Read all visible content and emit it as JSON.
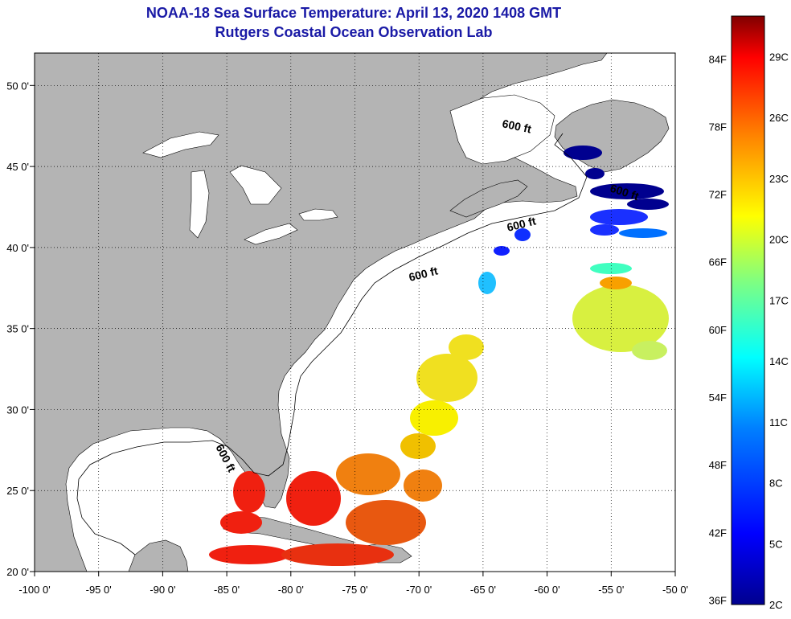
{
  "title": "NOAA-18 Sea Surface Temperature:  April 13, 2020 1408 GMT",
  "subtitle": "Rutgers Coastal Ocean Observation Lab",
  "axes": {
    "lon_labels": [
      "-100 0'",
      "-95 0'",
      "-90 0'",
      "-85 0'",
      "-80 0'",
      "-75 0'",
      "-70 0'",
      "-65 0'",
      "-60 0'",
      "-55 0'",
      "-50 0'"
    ],
    "lon_values": [
      -100,
      -95,
      -90,
      -85,
      -80,
      -75,
      -70,
      -65,
      -60,
      -55,
      -50
    ],
    "lat_labels": [
      "20 0'",
      "25 0'",
      "30 0'",
      "35 0'",
      "40 0'",
      "45 0'",
      "50 0'"
    ],
    "lat_values": [
      20,
      25,
      30,
      35,
      40,
      45,
      50
    ],
    "lon_range": [
      -100,
      -50
    ],
    "lat_range": [
      20,
      52
    ]
  },
  "contour_labels": [
    "600 ft",
    "600 ft",
    "600 ft",
    "600 ft",
    "600 ft"
  ],
  "colorbar": {
    "fahrenheit_labels": [
      "84F",
      "78F",
      "72F",
      "66F",
      "60F",
      "54F",
      "48F",
      "42F",
      "36F"
    ],
    "fahrenheit_values": [
      84,
      78,
      72,
      66,
      60,
      54,
      48,
      42,
      36
    ],
    "celsius_labels": [
      "29C",
      "26C",
      "23C",
      "20C",
      "17C",
      "14C",
      "11C",
      "8C",
      "5C",
      "2C"
    ],
    "celsius_values": [
      29,
      26,
      23,
      20,
      17,
      14,
      11,
      8,
      5,
      2
    ],
    "range_c": [
      2,
      31
    ],
    "colors": [
      "#00008f",
      "#0000ff",
      "#0080ff",
      "#00ffff",
      "#80ff80",
      "#ffff00",
      "#ff8000",
      "#ff0000",
      "#800000"
    ]
  },
  "colors": {
    "land": "#b4b4b4",
    "ocean": "#ffffff",
    "title": "#1a1aa6"
  }
}
